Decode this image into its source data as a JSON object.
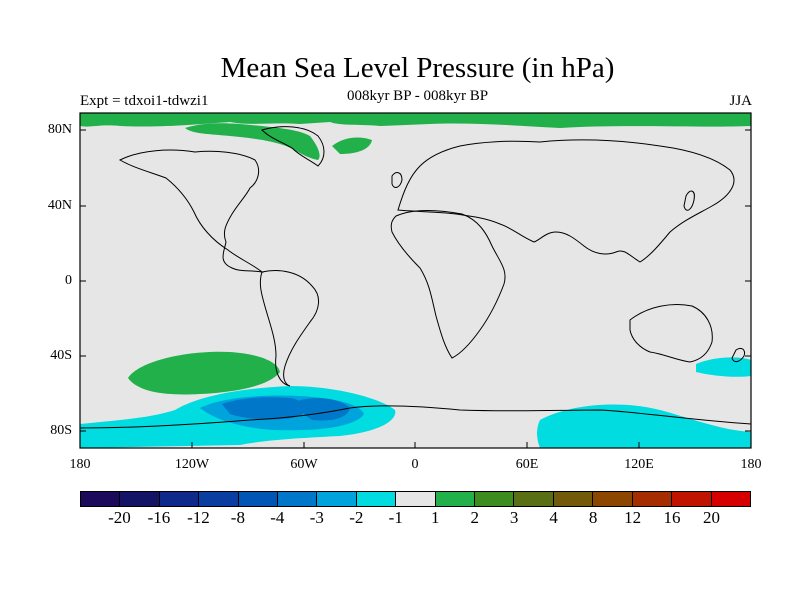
{
  "title": "Mean Sea Level Pressure (in hPa)",
  "subtitle": "008kyr BP - 008kyr BP",
  "expt_label": "Expt = tdxoi1-tdwzi1",
  "season": "JJA",
  "lat_labels": [
    "80N",
    "40N",
    "0",
    "40S",
    "80S"
  ],
  "lon_labels": [
    "180",
    "120W",
    "60W",
    "0",
    "60E",
    "120E",
    "180"
  ],
  "colorbar": {
    "colors": [
      "#1c0a5a",
      "#141466",
      "#0f2a8a",
      "#0a3ea0",
      "#0055b5",
      "#0077c8",
      "#00a3dc",
      "#00dce0",
      "#e6e6e6",
      "#22b04a",
      "#3c8c1e",
      "#5a6e14",
      "#735a0a",
      "#8c4600",
      "#a52d00",
      "#be1400",
      "#d70000"
    ],
    "labels": [
      "-20",
      "-16",
      "-12",
      "-8",
      "-4",
      "-3",
      "-2",
      "-1",
      "1",
      "2",
      "3",
      "4",
      "8",
      "12",
      "16",
      "20"
    ]
  }
}
